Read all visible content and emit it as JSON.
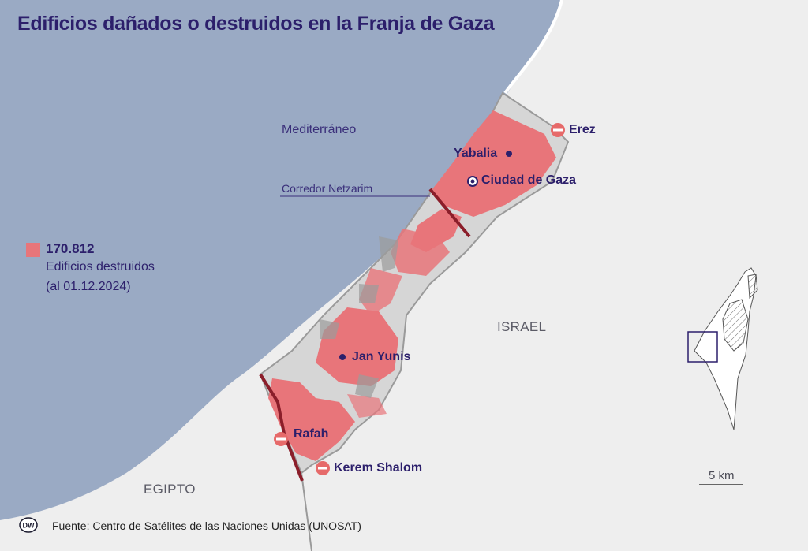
{
  "title": "Edificios dañados o destruidos en la Franja de Gaza",
  "labels": {
    "sea": "Mediterráneo",
    "corridor": "Corredor Netzarim",
    "israel": "ISRAEL",
    "egypt": "EGIPTO"
  },
  "places": {
    "erez": "Erez",
    "yabalia": "Yabalia",
    "gaza_city": "Ciudad de Gaza",
    "khan_younis": "Jan Yunis",
    "rafah": "Rafah",
    "kerem_shalom": "Kerem Shalom"
  },
  "legend": {
    "value": "170.812",
    "label": "Edificios destruidos",
    "date": "(al 01.12.2024)",
    "color": "#e8757a"
  },
  "scale": {
    "label": "5 km"
  },
  "source": "Fuente: Centro de Satélites de las Naciones Unidas (UNOSAT)",
  "logo": {
    "text": "DW"
  },
  "colors": {
    "sea": "#9aaac4",
    "land": "#eeeeee",
    "strip": "#d6d6d6",
    "destroyed": "#e8757a",
    "text": "#2c1f6b",
    "border": "#8b1e2a",
    "crossing": "#e66a6a"
  }
}
